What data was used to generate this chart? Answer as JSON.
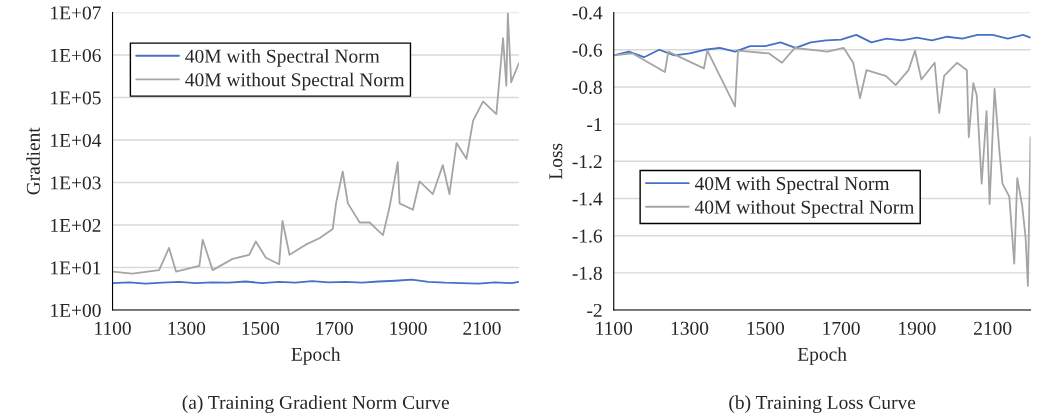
{
  "chart_data": [
    {
      "type": "line",
      "title": "(a) Training Gradient Norm Curve",
      "xlabel": "Epoch",
      "ylabel": "Gradient",
      "log": "y",
      "grid": "y",
      "legend": "top left",
      "xlim": [
        1100,
        2200
      ],
      "xticks": [
        1100,
        1300,
        1500,
        1700,
        1900,
        2100
      ],
      "ylim": [
        1,
        10000000
      ],
      "yticks": [
        {
          "value": 1,
          "label": "1E+00"
        },
        {
          "value": 10,
          "label": "1E+01"
        },
        {
          "value": 100,
          "label": "1E+02"
        },
        {
          "value": 1000,
          "label": "1E+03"
        },
        {
          "value": 10000,
          "label": "1E+04"
        },
        {
          "value": 100000,
          "label": "1E+05"
        },
        {
          "value": 1000000,
          "label": "1E+06"
        },
        {
          "value": 10000000,
          "label": "1E+07"
        }
      ],
      "series": [
        {
          "name": "40M with Spectral Norm",
          "color": "#4472c4",
          "x": [
            1100,
            1145,
            1190,
            1235,
            1280,
            1325,
            1370,
            1415,
            1460,
            1505,
            1550,
            1595,
            1640,
            1685,
            1730,
            1775,
            1820,
            1865,
            1910,
            1955,
            2000,
            2045,
            2090,
            2135,
            2180,
            2200
          ],
          "values": [
            4.3,
            4.5,
            4.2,
            4.4,
            4.6,
            4.3,
            4.5,
            4.4,
            4.7,
            4.3,
            4.6,
            4.4,
            4.8,
            4.5,
            4.6,
            4.4,
            4.7,
            4.9,
            5.2,
            4.6,
            4.4,
            4.3,
            4.2,
            4.5,
            4.3,
            4.6
          ]
        },
        {
          "name": "40M without Spectral Norm",
          "color": "#a5a5a5",
          "x": [
            1100,
            1154,
            1226,
            1253,
            1272,
            1335,
            1344,
            1371,
            1425,
            1470,
            1488,
            1515,
            1551,
            1560,
            1579,
            1624,
            1660,
            1696,
            1705,
            1723,
            1737,
            1769,
            1796,
            1814,
            1832,
            1850,
            1872,
            1877,
            1913,
            1931,
            1967,
            1994,
            2012,
            2031,
            2058,
            2076,
            2103,
            2121,
            2139,
            2157,
            2166,
            2170,
            2179,
            2200
          ],
          "values": [
            8,
            7.2,
            8.7,
            29,
            8,
            11,
            45,
            8.7,
            16,
            20,
            41,
            17,
            12,
            126,
            20,
            35,
            49,
            81,
            324,
            1820,
            324,
            115,
            115,
            81,
            58,
            269,
            3020,
            324,
            229,
            1070,
            537,
            2570,
            537,
            8510,
            3630,
            28800,
            81300,
            57500,
            40700,
            2510000,
            191000,
            9500000,
            229000,
            646000
          ]
        }
      ]
    },
    {
      "type": "line",
      "title": "(b) Training Loss Curve",
      "xlabel": "Epoch",
      "ylabel": "Loss",
      "grid": "y",
      "legend": "center left",
      "xlim": [
        1100,
        2200
      ],
      "xticks": [
        1100,
        1300,
        1500,
        1700,
        1900,
        2100
      ],
      "ylim": [
        -2,
        -0.4
      ],
      "yticks": [
        -2,
        -1.8,
        -1.6,
        -1.4,
        -1.2,
        -1,
        -0.8,
        -0.6,
        -0.4
      ],
      "series": [
        {
          "name": "40M with Spectral Norm",
          "color": "#4472c4",
          "x": [
            1100,
            1140,
            1180,
            1220,
            1260,
            1300,
            1340,
            1380,
            1420,
            1460,
            1500,
            1540,
            1580,
            1620,
            1660,
            1700,
            1740,
            1780,
            1820,
            1860,
            1900,
            1940,
            1980,
            2020,
            2060,
            2100,
            2140,
            2180,
            2200
          ],
          "values": [
            -0.63,
            -0.61,
            -0.64,
            -0.6,
            -0.63,
            -0.62,
            -0.6,
            -0.59,
            -0.61,
            -0.58,
            -0.58,
            -0.56,
            -0.59,
            -0.56,
            -0.55,
            -0.545,
            -0.52,
            -0.56,
            -0.54,
            -0.55,
            -0.535,
            -0.55,
            -0.53,
            -0.54,
            -0.52,
            -0.52,
            -0.54,
            -0.52,
            -0.535
          ]
        },
        {
          "name": "40M without Spectral Norm",
          "color": "#a5a5a5",
          "x": [
            1100,
            1150,
            1235,
            1244,
            1338,
            1347,
            1420,
            1428,
            1510,
            1544,
            1578,
            1664,
            1707,
            1732,
            1750,
            1767,
            1818,
            1844,
            1878,
            1895,
            1912,
            1947,
            1959,
            1972,
            2006,
            2032,
            2037,
            2049,
            2058,
            2071,
            2084,
            2092,
            2105,
            2118,
            2126,
            2144,
            2157,
            2165,
            2178,
            2187,
            2193,
            2200
          ],
          "values": [
            -0.63,
            -0.62,
            -0.72,
            -0.61,
            -0.7,
            -0.605,
            -0.905,
            -0.605,
            -0.62,
            -0.67,
            -0.59,
            -0.61,
            -0.59,
            -0.67,
            -0.86,
            -0.71,
            -0.74,
            -0.79,
            -0.71,
            -0.605,
            -0.76,
            -0.67,
            -0.94,
            -0.74,
            -0.67,
            -0.71,
            -1.07,
            -0.78,
            -0.845,
            -1.32,
            -0.93,
            -1.43,
            -0.81,
            -1.15,
            -1.32,
            -1.39,
            -1.75,
            -1.29,
            -1.44,
            -1.61,
            -1.87,
            -1.07
          ]
        }
      ]
    }
  ]
}
